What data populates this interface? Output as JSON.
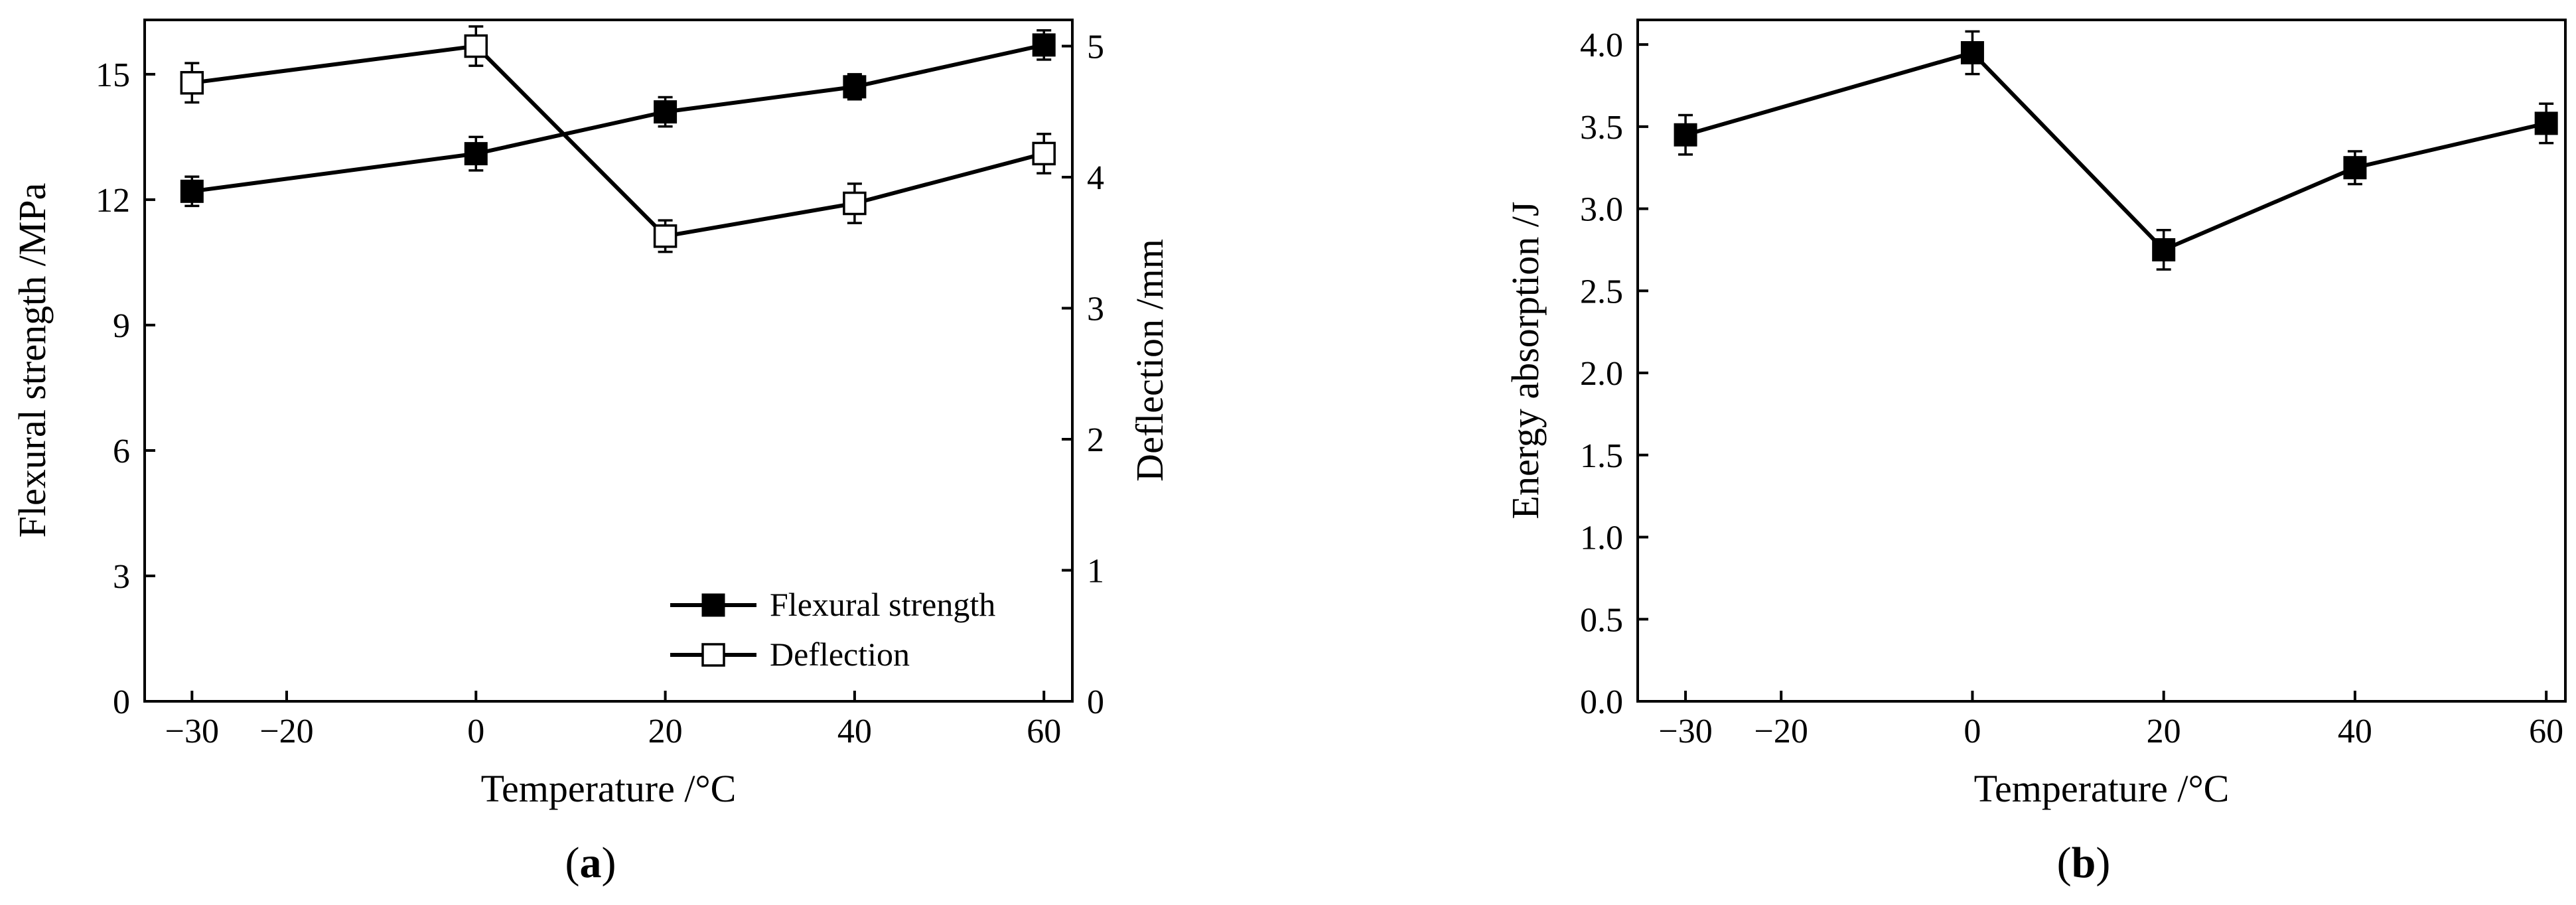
{
  "chart_data": [
    {
      "panel": "(a)",
      "panel_letter": "a",
      "type": "line",
      "xlabel": "Temperature /°C",
      "ylabel": "Flexural strength /MPa",
      "y2label": "Deflection /mm",
      "xlim": [
        -35,
        63
      ],
      "ylim": [
        0,
        16.3
      ],
      "y2lim": [
        0,
        5.2
      ],
      "xticks": [
        -30,
        -20,
        0,
        20,
        40,
        60
      ],
      "xtick_labels": [
        "−30",
        "−20",
        "0",
        "20",
        "40",
        "60"
      ],
      "yticks": [
        0,
        3,
        6,
        9,
        12,
        15
      ],
      "ytick_labels": [
        "0",
        "3",
        "6",
        "9",
        "12",
        "15"
      ],
      "y2ticks": [
        0,
        1,
        2,
        3,
        4,
        5
      ],
      "y2tick_labels": [
        "0",
        "1",
        "2",
        "3",
        "4",
        "5"
      ],
      "x": [
        -30,
        0,
        20,
        40,
        60
      ],
      "series": [
        {
          "name": "Flexural strength",
          "axis": "left",
          "marker": "filled-square",
          "values": [
            12.2,
            13.1,
            14.1,
            14.7,
            15.7
          ],
          "errors": [
            0.35,
            0.4,
            0.35,
            0.3,
            0.35
          ]
        },
        {
          "name": "Deflection",
          "axis": "right",
          "marker": "open-square",
          "values": [
            4.72,
            5.0,
            3.55,
            3.8,
            4.18
          ],
          "errors": [
            0.15,
            0.15,
            0.12,
            0.15,
            0.15
          ]
        }
      ],
      "legend_position": "bottom-right",
      "grid": false
    },
    {
      "panel": "(b)",
      "panel_letter": "b",
      "type": "line",
      "xlabel": "Temperature /°C",
      "ylabel": "Energy absorption /J",
      "xlim": [
        -35,
        62
      ],
      "ylim": [
        0,
        4.15
      ],
      "xticks": [
        -30,
        -20,
        0,
        20,
        40,
        60
      ],
      "xtick_labels": [
        "−30",
        "−20",
        "0",
        "20",
        "40",
        "60"
      ],
      "yticks": [
        0,
        0.5,
        1.0,
        1.5,
        2.0,
        2.5,
        3.0,
        3.5,
        4.0
      ],
      "ytick_labels": [
        "0.0",
        "0.5",
        "1.0",
        "1.5",
        "2.0",
        "2.5",
        "3.0",
        "3.5",
        "4.0"
      ],
      "x": [
        -30,
        0,
        20,
        40,
        60
      ],
      "series": [
        {
          "name": "Energy absorption",
          "marker": "filled-square",
          "values": [
            3.45,
            3.95,
            2.75,
            3.25,
            3.52
          ],
          "errors": [
            0.12,
            0.13,
            0.12,
            0.1,
            0.12
          ]
        }
      ],
      "grid": false
    }
  ]
}
